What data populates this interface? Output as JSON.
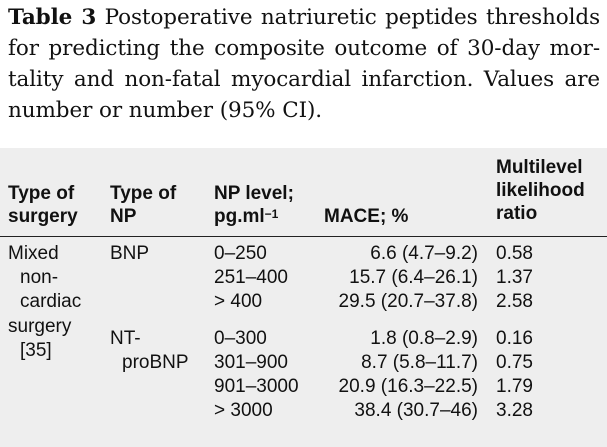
{
  "caption": {
    "lead": "Table 3",
    "text": "Postoperative natriuretic peptides thresholds for predicting the composite outcome of 30-day mor-tality and non-fatal myocardial infarction. Values are number or number (95% CI)."
  },
  "headers": {
    "surgery_l1": "Type of",
    "surgery_l2": "surgery",
    "np_l1": "Type of",
    "np_l2": "NP",
    "level_l1": "NP level;",
    "level_l2": "pg.ml",
    "level_sup": "−1",
    "mace": "MACE; %",
    "lr_l1": "Multilevel",
    "lr_l2": "likelihood",
    "lr_l3": "ratio"
  },
  "surgery": [
    "Mixed",
    "non-",
    "cardiac",
    "surgery",
    "[35]"
  ],
  "groups": [
    {
      "np_lines": [
        "BNP"
      ],
      "rows": [
        {
          "level": "0–250",
          "mace": "6.6 (4.7–9.2)",
          "lr": "0.58"
        },
        {
          "level": "251–400",
          "mace": "15.7 (6.4–26.1)",
          "lr": "1.37"
        },
        {
          "level": "> 400",
          "mace": "29.5 (20.7–37.8)",
          "lr": "2.58"
        }
      ]
    },
    {
      "np_lines": [
        "NT-",
        "proBNP"
      ],
      "rows": [
        {
          "level": "0–300",
          "mace": "1.8 (0.8–2.9)",
          "lr": "0.16"
        },
        {
          "level": "301–900",
          "mace": "8.7 (5.8–11.7)",
          "lr": "0.75"
        },
        {
          "level": "901–3000",
          "mace": "20.9 (16.3–22.5)",
          "lr": "1.79"
        },
        {
          "level": "> 3000",
          "mace": "38.4 (30.7–46)",
          "lr": "3.28"
        }
      ]
    }
  ]
}
